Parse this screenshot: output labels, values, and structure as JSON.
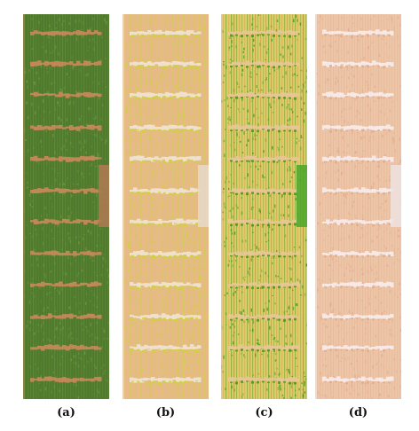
{
  "figure": {
    "panels": [
      {
        "label": "(a)",
        "style": "rgb",
        "base": "#4f7a2e",
        "gap": "#c98a5a",
        "accent": "#6f9a40",
        "side": "#b07a52"
      },
      {
        "label": "(b)",
        "style": "index",
        "base": "#e8b98a",
        "gap": "#f1e3d4",
        "accent": "#c9d631",
        "side": "#e6d9ca"
      },
      {
        "label": "(c)",
        "style": "index",
        "base": "#e6c96a",
        "gap": "#e8c59a",
        "accent": "#2f9a1a",
        "side": "#4aa72a"
      },
      {
        "label": "(d)",
        "style": "index",
        "base": "#edc6a8",
        "gap": "#f7ecec",
        "accent": "#e2a98c",
        "side": "#efe2e0"
      }
    ]
  }
}
